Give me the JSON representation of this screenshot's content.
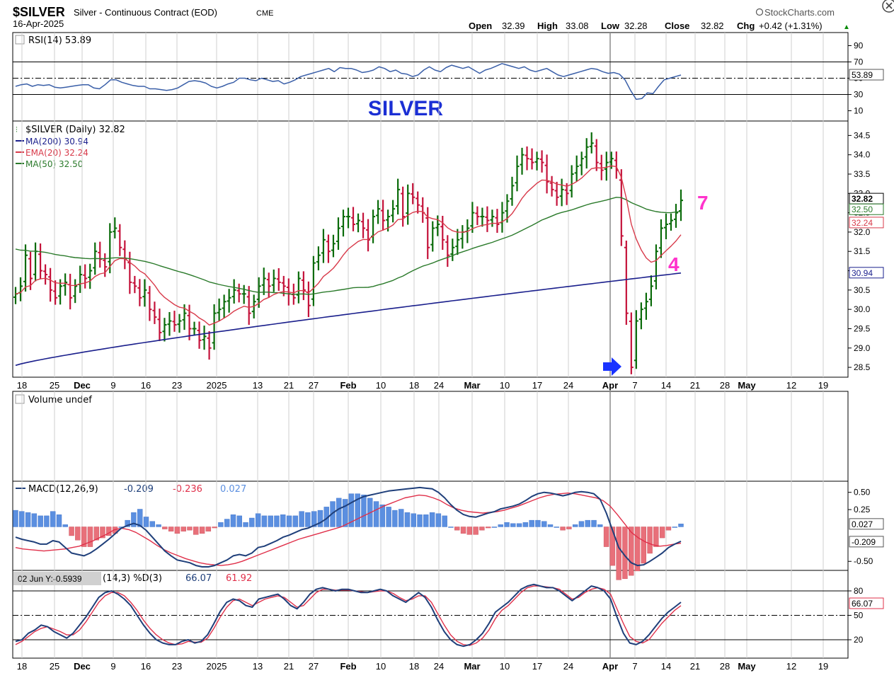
{
  "header": {
    "symbol": "$SILVER",
    "description": "Silver - Continuous Contract (EOD)",
    "exchange": "CME",
    "brand": "StockCharts.com",
    "date": "16-Apr-2025",
    "open_label": "Open",
    "open": "32.39",
    "high_label": "High",
    "high": "33.08",
    "low_label": "Low",
    "low": "32.28",
    "close_label": "Close",
    "close": "32.82",
    "chg_label": "Chg",
    "chg": "+0.42 (+1.31%)",
    "chg_arrow": "▲"
  },
  "colors": {
    "up": "#0a6b0a",
    "down": "#c4123a",
    "ma200": "#1a1f8c",
    "ema20": "#d83a4a",
    "ma50": "#2a7a2a",
    "rsi": "#3a5fa8",
    "macd": "#1f3f7a",
    "signal": "#e0304a",
    "hist_pos": "#5b8fe0",
    "hist_neg": "#e8707a",
    "annotation": "#ff33cc",
    "arrow": "#1a33ff"
  },
  "chart_data": [
    {
      "type": "line",
      "panel": "rsi",
      "legend": "RSI(14) 53.89",
      "ylim": [
        0,
        100
      ],
      "yticks": [
        "90",
        "70",
        "50",
        "30",
        "10"
      ],
      "levels": [
        70,
        30
      ],
      "last_label": "53.89",
      "series": [
        {
          "name": "RSI(14)",
          "values": [
            40,
            42,
            43,
            40,
            42,
            41,
            42,
            39,
            38,
            39,
            40,
            41,
            42,
            42,
            38,
            37,
            42,
            48,
            48,
            45,
            43,
            41,
            40,
            40,
            37,
            37,
            36,
            35,
            36,
            38,
            42,
            46,
            47,
            46,
            44,
            40,
            38,
            40,
            43,
            45,
            50,
            50,
            48,
            47,
            50,
            48,
            46,
            47,
            43,
            45,
            48,
            52,
            54,
            56,
            58,
            60,
            62,
            58,
            63,
            62,
            62,
            60,
            57,
            58,
            60,
            64,
            62,
            58,
            60,
            56,
            55,
            52,
            54,
            60,
            64,
            60,
            58,
            63,
            66,
            64,
            62,
            64,
            60,
            56,
            60,
            62,
            65,
            68,
            66,
            64,
            62,
            64,
            60,
            58,
            60,
            62,
            58,
            54,
            52,
            54,
            56,
            58,
            60,
            62,
            61,
            58,
            56,
            57,
            55,
            48,
            35,
            24,
            25,
            32,
            31,
            40,
            48,
            50,
            52,
            53.89
          ]
        }
      ]
    },
    {
      "type": "bar",
      "panel": "price",
      "subtitle": "SILVER",
      "legend": [
        "$SILVER (Daily) 32.82",
        "MA(200) 30.94",
        "EMA(20) 32.24",
        "MA(50) 32.50"
      ],
      "ylim": [
        28.3,
        34.8
      ],
      "yticks": [
        "34.5",
        "34.0",
        "33.5",
        "33.0",
        "32.5",
        "32.0",
        "31.5",
        "31.0",
        "30.5",
        "30.0",
        "29.5",
        "29.0",
        "28.5"
      ],
      "last_labels": [
        "32.82",
        "32.50",
        "32.24",
        "30.94"
      ],
      "annotations": [
        "7",
        "4"
      ],
      "close": [
        30.4,
        30.6,
        31.4,
        30.8,
        31.5,
        31.0,
        30.9,
        30.5,
        30.3,
        30.6,
        30.7,
        30.3,
        30.6,
        30.9,
        30.8,
        31.0,
        31.5,
        31.3,
        31.1,
        32.0,
        32.1,
        31.6,
        31.3,
        30.7,
        30.6,
        30.3,
        30.5,
        30.0,
        29.8,
        29.4,
        29.6,
        29.7,
        29.6,
        29.7,
        29.9,
        29.5,
        29.5,
        29.2,
        29.3,
        29.0,
        29.9,
        30.0,
        30.2,
        30.3,
        30.5,
        30.4,
        30.4,
        29.9,
        30.2,
        30.6,
        30.8,
        30.6,
        30.8,
        30.7,
        30.6,
        30.4,
        30.3,
        30.8,
        30.5,
        30.1,
        31.2,
        31.4,
        31.8,
        31.5,
        31.7,
        32.1,
        32.4,
        32.4,
        32.2,
        32.3,
        32.1,
        31.8,
        32.4,
        32.6,
        32.3,
        32.4,
        32.6,
        33.1,
        32.4,
        33.0,
        32.9,
        32.7,
        32.5,
        31.6,
        32.1,
        32.2,
        31.8,
        31.4,
        31.6,
        31.8,
        32.0,
        32.1,
        32.5,
        32.4,
        32.4,
        32.3,
        32.4,
        32.2,
        32.5,
        32.8,
        33.2,
        33.7,
        34.0,
        33.9,
        33.8,
        33.9,
        33.8,
        33.3,
        33.1,
        32.9,
        33.1,
        33.0,
        33.5,
        33.7,
        33.9,
        34.2,
        34.3,
        33.8,
        33.6,
        33.8,
        33.9,
        33.6,
        31.9,
        29.9,
        28.5,
        29.7,
        30.0,
        30.2,
        30.6,
        31.5,
        32.1,
        32.2,
        32.3,
        32.5,
        32.82
      ]
    },
    {
      "type": "bar",
      "panel": "volume",
      "legend": "Volume undef",
      "values": []
    },
    {
      "type": "line",
      "panel": "macd",
      "legend": [
        "MACD(12,26,9)",
        "-0.209",
        "-0.236",
        "0.027"
      ],
      "ylim": [
        -0.6,
        0.62
      ],
      "yticks": [
        "0.50",
        "0.25",
        "-0.50"
      ],
      "last_labels": [
        "0.027",
        "-0.209"
      ],
      "series": [
        {
          "name": "MACD",
          "values": [
            -0.15,
            -0.18,
            -0.2,
            -0.22,
            -0.25,
            -0.25,
            -0.2,
            -0.22,
            -0.3,
            -0.38,
            -0.4,
            -0.42,
            -0.38,
            -0.32,
            -0.25,
            -0.18,
            -0.1,
            -0.02,
            0.02,
            0.05,
            0.02,
            -0.05,
            -0.15,
            -0.25,
            -0.35,
            -0.42,
            -0.48,
            -0.5,
            -0.52,
            -0.56,
            -0.58,
            -0.58,
            -0.56,
            -0.52,
            -0.48,
            -0.42,
            -0.4,
            -0.42,
            -0.38,
            -0.3,
            -0.28,
            -0.24,
            -0.2,
            -0.15,
            -0.12,
            -0.08,
            -0.04,
            -0.02,
            0.02,
            0.06,
            0.12,
            0.2,
            0.26,
            0.3,
            0.35,
            0.4,
            0.44,
            0.46,
            0.48,
            0.5,
            0.52,
            0.53,
            0.54,
            0.55,
            0.56,
            0.57,
            0.56,
            0.55,
            0.5,
            0.42,
            0.32,
            0.24,
            0.18,
            0.15,
            0.14,
            0.17,
            0.2,
            0.22,
            0.26,
            0.28,
            0.3,
            0.33,
            0.38,
            0.44,
            0.48,
            0.5,
            0.49,
            0.47,
            0.45,
            0.47,
            0.5,
            0.51,
            0.5,
            0.48,
            0.4,
            0.2,
            -0.05,
            -0.3,
            -0.42,
            -0.52,
            -0.56,
            -0.55,
            -0.5,
            -0.44,
            -0.38,
            -0.3,
            -0.25,
            -0.209
          ]
        },
        {
          "name": "Signal",
          "values": [
            -0.3,
            -0.32,
            -0.33,
            -0.34,
            -0.35,
            -0.34,
            -0.33,
            -0.32,
            -0.3,
            -0.28,
            -0.24,
            -0.2,
            -0.15,
            -0.1,
            -0.04,
            -0.02,
            -0.04,
            -0.08,
            -0.14,
            -0.2,
            -0.27,
            -0.33,
            -0.38,
            -0.42,
            -0.46,
            -0.49,
            -0.52,
            -0.54,
            -0.55,
            -0.56,
            -0.55,
            -0.53,
            -0.5,
            -0.46,
            -0.42,
            -0.38,
            -0.34,
            -0.3,
            -0.26,
            -0.22,
            -0.18,
            -0.15,
            -0.12,
            -0.09,
            -0.06,
            -0.03,
            0.0,
            0.05,
            0.1,
            0.15,
            0.2,
            0.25,
            0.3,
            0.34,
            0.38,
            0.42,
            0.44,
            0.46,
            0.45,
            0.42,
            0.38,
            0.32,
            0.27,
            0.24,
            0.22,
            0.21,
            0.2,
            0.21,
            0.22,
            0.24,
            0.27,
            0.3,
            0.34,
            0.38,
            0.42,
            0.45,
            0.47,
            0.48,
            0.49,
            0.48,
            0.46,
            0.44,
            0.42,
            0.38,
            0.3,
            0.18,
            0.05,
            -0.08,
            -0.16,
            -0.22,
            -0.26,
            -0.28,
            -0.27,
            -0.25,
            -0.236
          ]
        }
      ]
    },
    {
      "type": "line",
      "panel": "stochastic",
      "legend": [
        "(14,3) %D(3)",
        "66.07",
        "61.92"
      ],
      "cursor_label": "02 Jun Y:-0.5939",
      "ylim": [
        0,
        100
      ],
      "yticks": [
        "80",
        "50",
        "20"
      ],
      "levels": [
        80,
        50,
        20
      ],
      "last_label": "66.07",
      "series": [
        {
          "name": "%K",
          "values": [
            18,
            20,
            28,
            32,
            38,
            36,
            30,
            26,
            22,
            28,
            38,
            48,
            60,
            72,
            78,
            80,
            76,
            70,
            62,
            50,
            38,
            28,
            20,
            16,
            14,
            14,
            18,
            20,
            16,
            18,
            26,
            40,
            55,
            66,
            70,
            68,
            62,
            60,
            70,
            72,
            74,
            76,
            70,
            62,
            58,
            66,
            76,
            82,
            84,
            82,
            80,
            82,
            82,
            80,
            78,
            78,
            80,
            82,
            80,
            74,
            70,
            66,
            72,
            78,
            72,
            60,
            44,
            30,
            20,
            14,
            12,
            14,
            20,
            28,
            40,
            54,
            60,
            66,
            74,
            82,
            86,
            88,
            86,
            84,
            84,
            80,
            74,
            68,
            74,
            80,
            86,
            84,
            80,
            70,
            48,
            28,
            16,
            14,
            18,
            26,
            36,
            46,
            54,
            60,
            66.07
          ]
        },
        {
          "name": "%D",
          "values": [
            14,
            18,
            24,
            30,
            34,
            36,
            33,
            30,
            26,
            26,
            32,
            42,
            54,
            66,
            74,
            78,
            78,
            74,
            66,
            56,
            44,
            34,
            26,
            20,
            16,
            14,
            15,
            18,
            17,
            17,
            22,
            34,
            48,
            60,
            68,
            70,
            66,
            62,
            66,
            70,
            72,
            74,
            72,
            66,
            60,
            62,
            70,
            78,
            82,
            82,
            81,
            81,
            81,
            80,
            79,
            78,
            79,
            80,
            80,
            77,
            72,
            68,
            70,
            74,
            74,
            66,
            52,
            38,
            26,
            18,
            14,
            13,
            16,
            22,
            32,
            46,
            56,
            62,
            70,
            78,
            84,
            86,
            86,
            85,
            84,
            82,
            76,
            70,
            72,
            78,
            82,
            84,
            82,
            76,
            58,
            40,
            24,
            18,
            16,
            20,
            30,
            40,
            48,
            56,
            61.92
          ]
        }
      ]
    },
    {
      "type": "axis",
      "panel": "time",
      "xticks": [
        "18",
        "25",
        "Dec",
        "9",
        "16",
        "23",
        "2025",
        "13",
        "21",
        "27",
        "Feb",
        "10",
        "18",
        "24",
        "Mar",
        "10",
        "17",
        "24",
        "Apr",
        "7",
        "14",
        "21",
        "28",
        "May",
        "12",
        "19"
      ]
    }
  ]
}
